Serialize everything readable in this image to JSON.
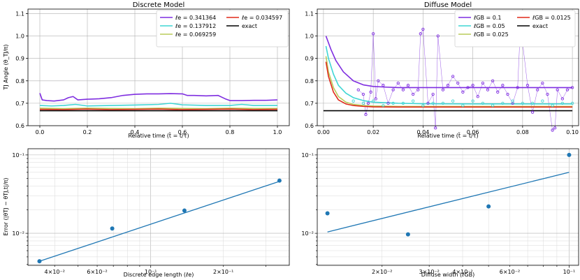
{
  "chart_data": [
    {
      "type": "line",
      "title": "Discrete Model",
      "xlabel": "Relative time (t̃ = t/τ)",
      "ylabel": "TJ Angle (θ_TJ/π)",
      "xlim": [
        -0.05,
        1.05
      ],
      "ylim": [
        0.6,
        1.12
      ],
      "xticks": [
        "0.0",
        "0.2",
        "0.4",
        "0.6",
        "0.8",
        "1.0"
      ],
      "yticks": [
        "0.6",
        "0.7",
        "0.8",
        "0.9",
        "1.0",
        "1.1"
      ],
      "legend_position": "top-right",
      "series": [
        {
          "name": "ℓe = 0.341364",
          "color": "#7f2ee0",
          "x": [
            0,
            0.01,
            0.03,
            0.06,
            0.1,
            0.12,
            0.14,
            0.16,
            0.2,
            0.25,
            0.3,
            0.35,
            0.4,
            0.45,
            0.5,
            0.55,
            0.6,
            0.62,
            0.65,
            0.7,
            0.75,
            0.78,
            0.8,
            0.85,
            0.9,
            0.95,
            1.0
          ],
          "y": [
            0.745,
            0.715,
            0.712,
            0.71,
            0.715,
            0.725,
            0.73,
            0.715,
            0.718,
            0.72,
            0.725,
            0.735,
            0.74,
            0.742,
            0.742,
            0.743,
            0.742,
            0.735,
            0.735,
            0.733,
            0.735,
            0.72,
            0.712,
            0.712,
            0.713,
            0.713,
            0.715
          ]
        },
        {
          "name": "ℓe = 0.137912",
          "color": "#3fd6d4",
          "x": [
            0,
            0.05,
            0.1,
            0.15,
            0.2,
            0.3,
            0.4,
            0.5,
            0.55,
            0.6,
            0.7,
            0.8,
            0.85,
            0.9,
            1.0
          ],
          "y": [
            0.69,
            0.688,
            0.69,
            0.695,
            0.688,
            0.69,
            0.692,
            0.695,
            0.7,
            0.693,
            0.69,
            0.69,
            0.695,
            0.69,
            0.69
          ]
        },
        {
          "name": "ℓe = 0.069259",
          "color": "#b8cc5a",
          "x": [
            0,
            0.1,
            0.2,
            0.3,
            0.4,
            0.5,
            0.6,
            0.7,
            0.8,
            0.9,
            1.0
          ],
          "y": [
            0.678,
            0.676,
            0.678,
            0.677,
            0.676,
            0.678,
            0.677,
            0.676,
            0.678,
            0.677,
            0.677
          ]
        },
        {
          "name": "ℓe = 0.034597",
          "color": "#e02a1a",
          "x": [
            0,
            0.1,
            0.2,
            0.3,
            0.4,
            0.5,
            0.6,
            0.7,
            0.8,
            0.9,
            1.0
          ],
          "y": [
            0.673,
            0.672,
            0.674,
            0.672,
            0.673,
            0.674,
            0.672,
            0.673,
            0.674,
            0.672,
            0.673
          ]
        },
        {
          "name": "exact",
          "color": "#000000",
          "x": [
            0,
            1.0
          ],
          "y": [
            0.6667,
            0.6667
          ]
        }
      ]
    },
    {
      "type": "line",
      "title": "Diffuse Model",
      "xlabel": "Relative time (t̃ = t/τ)",
      "ylabel": "",
      "xlim": [
        -0.0025,
        0.1025
      ],
      "ylim": [
        0.6,
        1.12
      ],
      "xticks": [
        "0.00",
        "0.02",
        "0.04",
        "0.06",
        "0.08",
        "0.10"
      ],
      "yticks": [
        "0.6",
        "0.7",
        "0.8",
        "0.9",
        "1.0",
        "1.1"
      ],
      "legend_position": "top-right",
      "series": [
        {
          "name": "ℓGB = 0.1",
          "color": "#7f2ee0",
          "x": [
            0.001,
            0.002,
            0.003,
            0.005,
            0.008,
            0.012,
            0.016,
            0.02,
            0.025,
            0.03,
            0.04,
            0.05,
            0.06,
            0.07,
            0.08,
            0.09,
            0.1
          ],
          "y": [
            1.0,
            0.97,
            0.94,
            0.89,
            0.84,
            0.8,
            0.782,
            0.775,
            0.772,
            0.77,
            0.77,
            0.77,
            0.77,
            0.77,
            0.77,
            0.77,
            0.77
          ]
        },
        {
          "name": "ℓGB = 0.05",
          "color": "#3fd6d4",
          "x": [
            0.001,
            0.002,
            0.004,
            0.006,
            0.009,
            0.012,
            0.016,
            0.02,
            0.03,
            0.04,
            0.06,
            0.08,
            0.1
          ],
          "y": [
            0.955,
            0.9,
            0.83,
            0.78,
            0.745,
            0.725,
            0.712,
            0.705,
            0.7,
            0.698,
            0.697,
            0.697,
            0.697
          ]
        },
        {
          "name": "ℓGB = 0.025",
          "color": "#b8cc5a",
          "x": [
            0.001,
            0.002,
            0.004,
            0.006,
            0.009,
            0.012,
            0.016,
            0.02,
            0.03,
            0.05,
            0.08,
            0.1
          ],
          "y": [
            0.91,
            0.84,
            0.77,
            0.73,
            0.705,
            0.695,
            0.69,
            0.688,
            0.686,
            0.686,
            0.686,
            0.686
          ]
        },
        {
          "name": "ℓGB = 0.0125",
          "color": "#e02a1a",
          "x": [
            0.001,
            0.002,
            0.004,
            0.006,
            0.009,
            0.012,
            0.016,
            0.02,
            0.03,
            0.05,
            0.08,
            0.1
          ],
          "y": [
            0.885,
            0.82,
            0.75,
            0.715,
            0.697,
            0.69,
            0.686,
            0.684,
            0.683,
            0.683,
            0.683,
            0.683
          ]
        },
        {
          "name": "exact",
          "color": "#000000",
          "x": [
            0.0,
            0.1
          ],
          "y": [
            0.6667,
            0.6667
          ]
        }
      ],
      "scatter": [
        {
          "color": "#7f2ee0",
          "x": [
            0.014,
            0.016,
            0.017,
            0.018,
            0.019,
            0.02,
            0.021,
            0.022,
            0.024,
            0.026,
            0.028,
            0.03,
            0.032,
            0.034,
            0.036,
            0.038,
            0.039,
            0.04,
            0.042,
            0.044,
            0.045,
            0.046,
            0.048,
            0.05,
            0.052,
            0.054,
            0.056,
            0.058,
            0.06,
            0.062,
            0.064,
            0.066,
            0.068,
            0.07,
            0.072,
            0.074,
            0.076,
            0.078,
            0.079,
            0.08,
            0.082,
            0.084,
            0.086,
            0.088,
            0.09,
            0.092,
            0.093,
            0.094,
            0.096,
            0.098,
            0.1
          ],
          "y": [
            0.76,
            0.74,
            0.65,
            0.7,
            0.75,
            1.01,
            0.72,
            0.8,
            0.78,
            0.7,
            0.76,
            0.79,
            0.76,
            0.78,
            0.74,
            0.76,
            1.01,
            1.03,
            0.7,
            0.74,
            0.59,
            1.0,
            0.76,
            0.78,
            0.82,
            0.79,
            0.75,
            0.77,
            0.78,
            0.73,
            0.79,
            0.76,
            0.8,
            0.75,
            0.78,
            0.74,
            0.7,
            0.77,
            1.01,
            0.97,
            0.78,
            0.66,
            0.76,
            0.79,
            0.74,
            0.58,
            0.59,
            0.76,
            0.72,
            0.76,
            0.77
          ]
        },
        {
          "color": "#3fd6d4",
          "x": [
            0.012,
            0.016,
            0.02,
            0.024,
            0.028,
            0.032,
            0.036,
            0.04,
            0.044,
            0.048,
            0.052,
            0.056,
            0.06,
            0.064,
            0.068,
            0.072,
            0.076,
            0.08,
            0.084,
            0.088,
            0.092,
            0.096,
            0.1
          ],
          "y": [
            0.71,
            0.7,
            0.71,
            0.69,
            0.7,
            0.7,
            0.71,
            0.69,
            0.7,
            0.7,
            0.71,
            0.69,
            0.71,
            0.7,
            0.69,
            0.7,
            0.71,
            0.7,
            0.7,
            0.71,
            0.69,
            0.7,
            0.7
          ]
        }
      ]
    },
    {
      "type": "scatter",
      "title": "",
      "xlabel": "Discrete edge length (ℓe)",
      "ylabel": "Error (|θTJ − θTJ,t|/π)",
      "xscale": "log",
      "yscale": "log",
      "xlim": [
        0.031,
        0.375
      ],
      "ylim": [
        0.0039,
        0.12
      ],
      "xticks": [
        "4×10⁻²",
        "6×10⁻²",
        "10⁻¹",
        "2×10⁻¹"
      ],
      "yticks": [
        "10⁻²",
        "10⁻¹"
      ],
      "points": {
        "x": [
          0.034597,
          0.069259,
          0.137912,
          0.341364
        ],
        "y": [
          0.0044,
          0.0115,
          0.0195,
          0.047
        ]
      },
      "fit": {
        "x": [
          0.034597,
          0.341364
        ],
        "y": [
          0.0044,
          0.046
        ]
      }
    },
    {
      "type": "scatter",
      "title": "",
      "xlabel": "Diffuse width (ℓGB)",
      "ylabel": "",
      "xscale": "log",
      "yscale": "log",
      "xlim": [
        0.01145,
        0.1085
      ],
      "ylim": [
        0.0039,
        0.12
      ],
      "xticks": [
        "2×10⁻²",
        "3×10⁻²",
        "4×10⁻²",
        "6×10⁻²",
        "10⁻¹"
      ],
      "yticks": [
        "10⁻²",
        "10⁻¹"
      ],
      "points": {
        "x": [
          0.0125,
          0.025,
          0.05,
          0.1
        ],
        "y": [
          0.018,
          0.0097,
          0.022,
          0.1
        ]
      },
      "fit": {
        "x": [
          0.0125,
          0.1
        ],
        "y": [
          0.0104,
          0.06
        ]
      }
    }
  ],
  "legend_labels": {
    "top_left": [
      "ℓe = 0.341364",
      "ℓe = 0.137912",
      "ℓe = 0.069259",
      "ℓe = 0.034597",
      "exact"
    ],
    "top_right": [
      "ℓGB = 0.1",
      "ℓGB = 0.05",
      "ℓGB = 0.025",
      "ℓGB = 0.0125",
      "exact"
    ]
  },
  "colors": {
    "purple": "#7f2ee0",
    "cyan": "#3fd6d4",
    "olive": "#b8cc5a",
    "red": "#e02a1a",
    "black": "#000000",
    "blue": "#1f77b4"
  }
}
